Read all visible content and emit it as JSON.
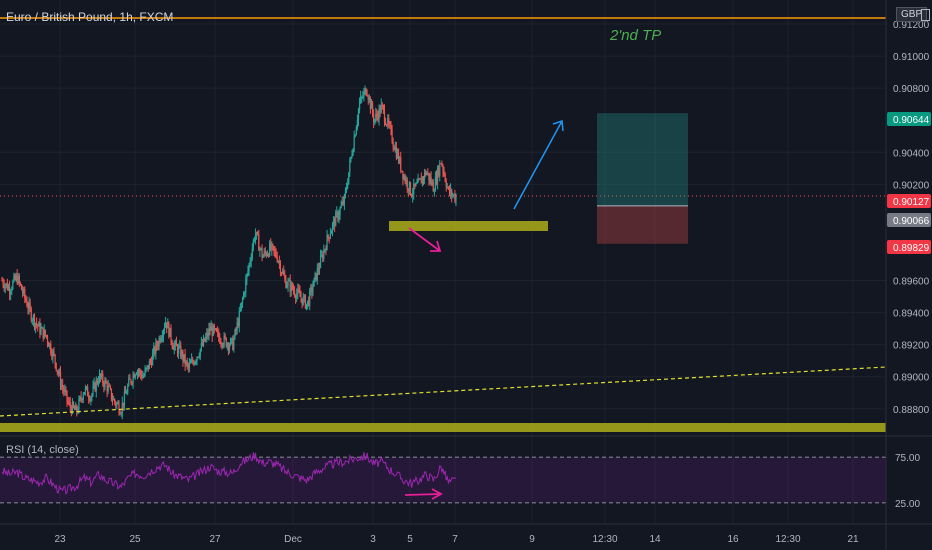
{
  "header": {
    "title": "Euro / British Pound, 1h, FXCM",
    "currency": "GBP"
  },
  "annotations": {
    "tp_text": "2'nd TP"
  },
  "rsi": {
    "label": "RSI (14, close)",
    "ticks": [
      "75.00",
      "25.00"
    ]
  },
  "colors": {
    "background": "#131722",
    "grid": "#1e222d",
    "up": "#26a69a",
    "down": "#ef5350",
    "orange": "#ff9800",
    "zone": "#a4a51a",
    "trend": "#e0e030",
    "blue_arrow": "#2196f3",
    "pink": "#e91e98",
    "rsi_line": "#9c27b0",
    "tp": "#4caf50"
  },
  "chart_data": {
    "type": "candlestick",
    "title": "Euro / British Pound, 1h, FXCM",
    "ylim": [
      0.8863,
      0.9135
    ],
    "y_ticks": [
      "0.91200",
      "0.91000",
      "0.90800",
      "0.90400",
      "0.90200",
      "0.89600",
      "0.89400",
      "0.89200",
      "0.89000",
      "0.88800"
    ],
    "x_ticks": [
      "23",
      "25",
      "27",
      "Dec",
      "3",
      "5",
      "7",
      "9",
      "12:30",
      "14",
      "16",
      "12:30",
      "21"
    ],
    "price_badges": [
      {
        "value": "0.90644",
        "color": "#089981"
      },
      {
        "value": "0.90127",
        "color": "#f23645"
      },
      {
        "value": "0.90066",
        "color": "#787b86"
      },
      {
        "value": "0.89829",
        "color": "#f23645"
      }
    ],
    "horizontal_line": 0.9125,
    "support_zone": [
      0.9004,
      0.901
    ],
    "bottom_zone": [
      0.8865,
      0.8875
    ],
    "position": {
      "entry": 0.90066,
      "target": 0.90644,
      "stop": 0.89829
    },
    "close_path": [
      0.896,
      0.8955,
      0.8962,
      0.895,
      0.8938,
      0.893,
      0.8925,
      0.8912,
      0.8895,
      0.8882,
      0.8878,
      0.8892,
      0.8888,
      0.89,
      0.8895,
      0.8885,
      0.888,
      0.8895,
      0.8905,
      0.89,
      0.891,
      0.8922,
      0.8935,
      0.892,
      0.8915,
      0.8905,
      0.8912,
      0.892,
      0.893,
      0.8925,
      0.8922,
      0.892,
      0.894,
      0.8965,
      0.899,
      0.8975,
      0.898,
      0.8975,
      0.896,
      0.8955,
      0.895,
      0.8945,
      0.896,
      0.8975,
      0.899,
      0.9,
      0.901,
      0.904,
      0.907,
      0.908,
      0.906,
      0.9068,
      0.9055,
      0.904,
      0.9025,
      0.9015,
      0.902,
      0.9028,
      0.9018,
      0.9035,
      0.9015,
      0.9012
    ],
    "rsi_values": [
      58,
      55,
      57,
      52,
      50,
      48,
      52,
      45,
      40,
      42,
      45,
      52,
      48,
      55,
      50,
      47,
      44,
      52,
      56,
      54,
      58,
      62,
      63,
      55,
      53,
      50,
      54,
      58,
      62,
      58,
      57,
      56,
      65,
      68,
      72,
      65,
      66,
      63,
      58,
      55,
      52,
      50,
      56,
      60,
      63,
      65,
      66,
      68,
      70,
      71,
      64,
      66,
      60,
      55,
      50,
      47,
      50,
      55,
      50,
      62,
      48,
      50
    ]
  }
}
